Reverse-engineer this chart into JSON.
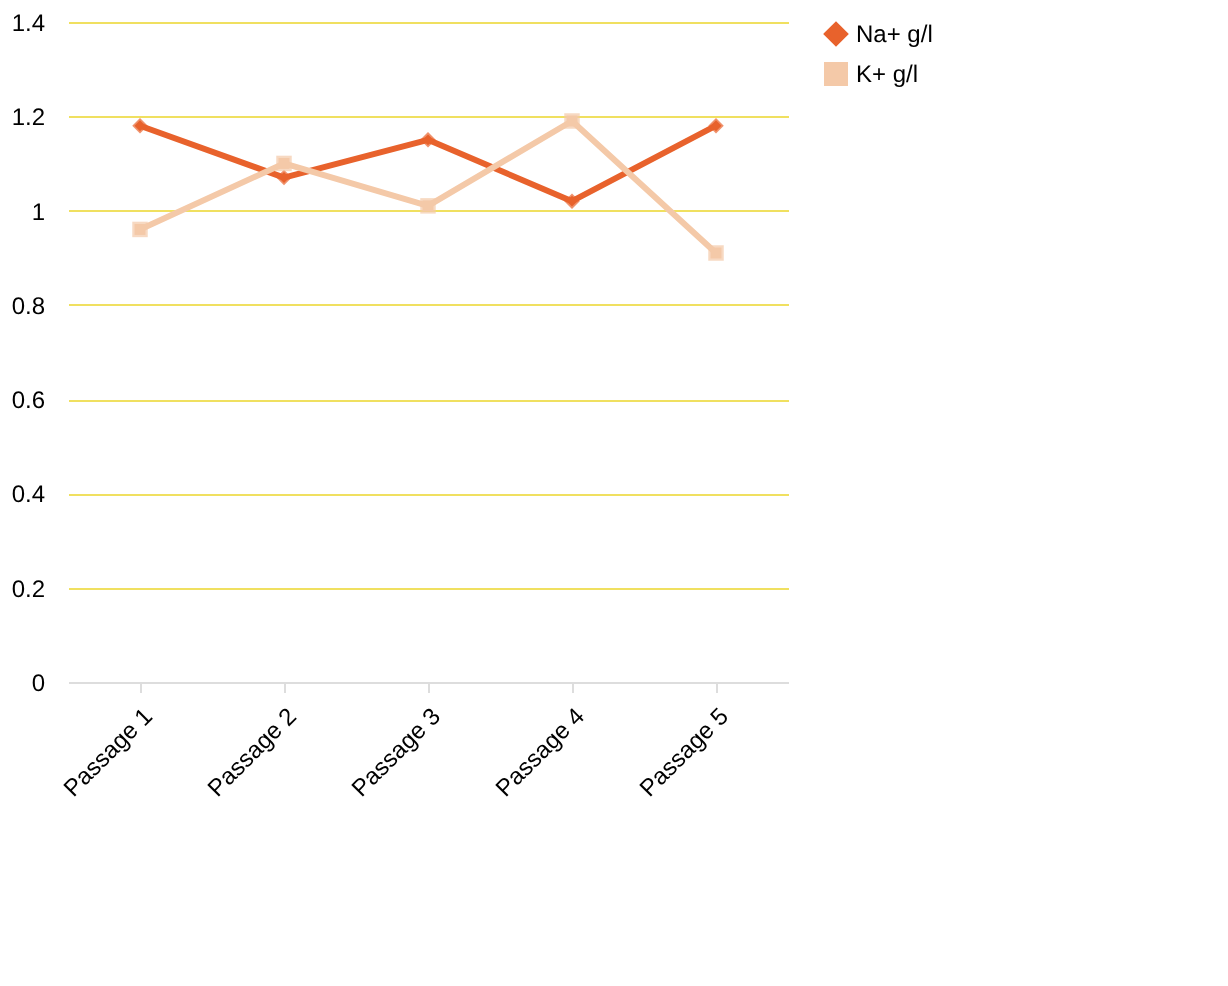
{
  "chart_data": {
    "type": "line",
    "categories": [
      "Passage 1",
      "Passage 2",
      "Passage 3",
      "Passage 4",
      "Passage 5"
    ],
    "series": [
      {
        "name": "Na+ g/l",
        "color": "#e8622c",
        "values": [
          1.18,
          1.07,
          1.15,
          1.02,
          1.18
        ],
        "marker": "diamond"
      },
      {
        "name": "K+ g/l",
        "color": "#f4c9a8",
        "values": [
          0.96,
          1.1,
          1.01,
          1.19,
          0.91
        ],
        "marker": "square"
      }
    ],
    "ylim": [
      0,
      1.4
    ],
    "yticks": [
      0,
      0.2,
      0.4,
      0.6,
      0.8,
      1,
      1.2,
      1.4
    ],
    "grid": "y",
    "legend": "right"
  }
}
